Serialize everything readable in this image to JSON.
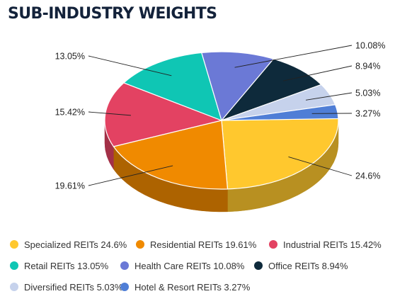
{
  "title": "SUB-INDUSTRY WEIGHTS",
  "chart_data": {
    "type": "pie",
    "title": "SUB-INDUSTRY WEIGHTS",
    "three_d": true,
    "slices": [
      {
        "name": "Specialized REITs",
        "value": 24.6,
        "label": "24.6%",
        "color": "#FFC82E"
      },
      {
        "name": "Residential REITs",
        "value": 19.61,
        "label": "19.61%",
        "color": "#F08A00"
      },
      {
        "name": "Industrial REITs",
        "value": 15.42,
        "label": "15.42%",
        "color": "#E34262"
      },
      {
        "name": "Retail REITs",
        "value": 13.05,
        "label": "13.05%",
        "color": "#0FC6B4"
      },
      {
        "name": "Health Care REITs",
        "value": 10.08,
        "label": "10.08%",
        "color": "#6B79D6"
      },
      {
        "name": "Office REITs",
        "value": 8.94,
        "label": "8.94%",
        "color": "#0E2A3B"
      },
      {
        "name": "Diversified REITs",
        "value": 5.03,
        "label": "5.03%",
        "color": "#C6D2EC"
      },
      {
        "name": "Hotel & Resort REITs",
        "value": 3.27,
        "label": "3.27%",
        "color": "#4F7ED6"
      }
    ]
  },
  "legend": [
    {
      "text": "Specialized REITs 24.6%",
      "color": "#FFC82E"
    },
    {
      "text": "Residential REITs 19.61%",
      "color": "#F08A00"
    },
    {
      "text": "Industrial REITs 15.42%",
      "color": "#E34262"
    },
    {
      "text": "Retail REITs 13.05%",
      "color": "#0FC6B4"
    },
    {
      "text": "Health Care REITs 10.08%",
      "color": "#6B79D6"
    },
    {
      "text": "Office REITs 8.94%",
      "color": "#0E2A3B"
    },
    {
      "text": "Diversified REITs 5.03%",
      "color": "#C6D2EC"
    },
    {
      "text": "Hotel & Resort REITs 3.27%",
      "color": "#4F7ED6"
    }
  ]
}
